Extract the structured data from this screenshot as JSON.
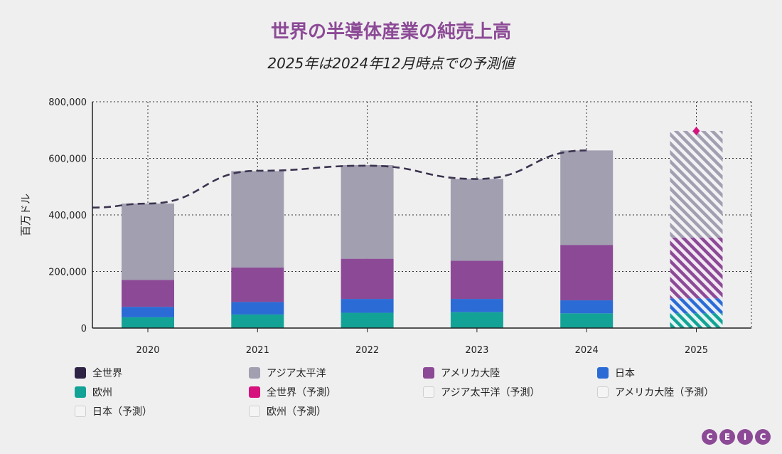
{
  "title": "世界の半導体産業の純売上高",
  "subtitle": "2025年は2024年12月時点での予測値",
  "logo": [
    "C",
    "E",
    "I",
    "C"
  ],
  "legend": [
    {
      "label": "全世界",
      "color": "#2f2345",
      "style": "solid"
    },
    {
      "label": "アジア太平洋",
      "color": "#a19fb0",
      "style": "solid"
    },
    {
      "label": "アメリカ大陸",
      "color": "#8c4a96",
      "style": "solid"
    },
    {
      "label": "日本",
      "color": "#2b6bd6",
      "style": "solid"
    },
    {
      "label": "欧州",
      "color": "#13a396",
      "style": "solid"
    },
    {
      "label": "全世界（予測）",
      "color": "#d6127d",
      "style": "solid"
    },
    {
      "label": "アジア太平洋（予測）",
      "color": "",
      "style": "empty"
    },
    {
      "label": "アメリカ大陸（予測）",
      "color": "",
      "style": "empty"
    },
    {
      "label": "日本（予測）",
      "color": "",
      "style": "empty"
    },
    {
      "label": "欧州（予測）",
      "color": "",
      "style": "empty"
    }
  ],
  "chart_data": {
    "type": "bar",
    "stacked": true,
    "categories": [
      "2020",
      "2021",
      "2022",
      "2023",
      "2024",
      "2025"
    ],
    "ylabel": "百万ドル",
    "ylim": [
      0,
      800000
    ],
    "yticks": [
      "0",
      "200,000",
      "400,000",
      "600,000",
      "800,000"
    ],
    "grid": true,
    "legend_position": "bottom",
    "forecast_categories": [
      "2025"
    ],
    "series": [
      {
        "name": "欧州",
        "color": "#13a396",
        "values": [
          38000,
          48000,
          54000,
          56000,
          52000,
          52000
        ]
      },
      {
        "name": "日本",
        "color": "#2b6bd6",
        "values": [
          37000,
          44000,
          49000,
          47000,
          46000,
          53000
        ]
      },
      {
        "name": "アメリカ大陸",
        "color": "#8c4a96",
        "values": [
          95000,
          122000,
          142000,
          135000,
          196000,
          215000
        ]
      },
      {
        "name": "アジア太平洋",
        "color": "#a19fb0",
        "values": [
          270000,
          341000,
          331000,
          289000,
          334000,
          377000
        ]
      }
    ],
    "world_line": {
      "name": "全世界",
      "color": "#3c3450",
      "values": [
        440000,
        556000,
        574000,
        527000,
        628000
      ]
    },
    "world_forecast": {
      "name": "全世界（予測）",
      "color": "#d6127d",
      "category": "2025",
      "value": 697000
    }
  }
}
